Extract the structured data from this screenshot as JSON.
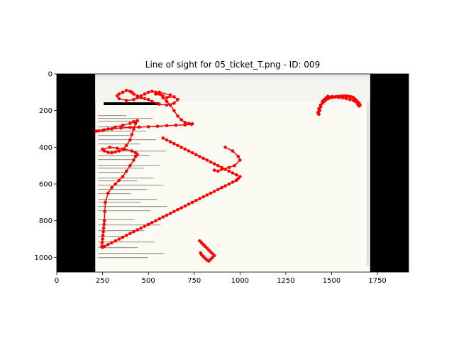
{
  "chart_data": {
    "type": "scatter",
    "title": "Line of sight for 05_ticket_T.png - ID: 009",
    "xlabel": "",
    "ylabel": "",
    "xlim": [
      0,
      1920
    ],
    "ylim": [
      1080,
      0
    ],
    "x_ticks": [
      0,
      250,
      500,
      750,
      1000,
      1250,
      1500,
      1750
    ],
    "y_ticks": [
      0,
      200,
      400,
      600,
      800,
      1000
    ],
    "grid": false,
    "image_extent": {
      "x": [
        0,
        1920
      ],
      "y": [
        0,
        1080
      ]
    },
    "screenshot_extent": {
      "x": [
        210,
        1710
      ],
      "y": [
        0,
        1080
      ]
    },
    "series": [
      {
        "color": "#ff0000",
        "x": [
          540,
          580,
          560,
          620,
          600,
          640,
          660,
          640,
          600,
          560,
          520,
          500,
          480,
          460,
          440,
          420,
          410,
          400,
          380,
          360,
          340,
          330,
          340,
          380,
          420,
          440,
          460,
          480,
          500,
          520,
          540,
          560,
          580,
          600,
          620,
          640,
          660,
          680,
          700,
          720,
          740,
          735,
          700,
          650,
          600,
          550,
          500,
          450,
          400,
          350,
          300,
          260,
          230,
          215,
          250,
          280,
          320,
          360,
          400,
          420,
          440,
          430,
          420,
          410,
          400,
          380,
          360,
          340,
          320,
          300,
          280,
          260,
          250,
          290,
          330,
          370,
          410,
          430,
          440,
          430,
          420,
          400,
          380,
          360,
          340,
          320,
          300,
          280,
          265,
          262,
          260,
          258,
          256,
          254,
          252,
          250,
          248,
          246,
          250,
          260,
          280,
          300,
          320,
          340,
          360,
          380,
          400,
          420,
          440,
          460,
          480,
          500,
          520,
          540,
          560,
          580,
          600,
          620,
          640,
          660,
          680,
          700,
          720,
          740,
          760,
          780,
          800,
          820,
          840,
          860,
          880,
          900,
          920,
          940,
          960,
          980,
          990,
          1000,
          980,
          960,
          940,
          920,
          900,
          880,
          860,
          840,
          820,
          800,
          780,
          760,
          740,
          720,
          700,
          680,
          660,
          640,
          620,
          600,
          580
        ],
        "y": [
          110,
          120,
          100,
          115,
          130,
          125,
          140,
          160,
          170,
          165,
          150,
          140,
          135,
          130,
          120,
          110,
          100,
          95,
          90,
          100,
          110,
          120,
          135,
          145,
          140,
          130,
          120,
          110,
          100,
          95,
          100,
          110,
          130,
          150,
          170,
          200,
          230,
          250,
          265,
          270,
          272,
          275,
          278,
          280,
          282,
          285,
          288,
          290,
          292,
          295,
          300,
          305,
          310,
          312,
          308,
          300,
          290,
          280,
          270,
          260,
          255,
          270,
          300,
          330,
          360,
          390,
          410,
          420,
          425,
          430,
          428,
          420,
          410,
          400,
          405,
          410,
          420,
          430,
          440,
          450,
          470,
          500,
          530,
          560,
          580,
          600,
          620,
          650,
          700,
          750,
          800,
          820,
          840,
          860,
          880,
          900,
          920,
          940,
          945,
          940,
          930,
          920,
          910,
          900,
          890,
          880,
          870,
          860,
          850,
          840,
          830,
          820,
          810,
          800,
          790,
          780,
          770,
          760,
          750,
          740,
          730,
          720,
          710,
          700,
          690,
          680,
          670,
          660,
          650,
          640,
          630,
          620,
          610,
          600,
          590,
          580,
          570,
          560,
          550,
          540,
          530,
          520,
          510,
          500,
          490,
          480,
          470,
          460,
          450,
          440,
          430,
          420,
          410,
          400,
          390,
          380,
          370,
          360,
          350
        ]
      },
      {
        "color": "#ff0000",
        "x": [
          1430,
          1435,
          1440,
          1450,
          1460,
          1470,
          1480,
          1490,
          1500,
          1510,
          1520,
          1530,
          1540,
          1550,
          1560,
          1570,
          1580,
          1590,
          1600,
          1610,
          1620,
          1630,
          1640,
          1650,
          1655,
          1650,
          1645,
          1640,
          1630,
          1620,
          1600,
          1580,
          1560,
          1540,
          1520,
          1500,
          1480,
          1470,
          1460,
          1450,
          1440,
          1430,
          1425
        ],
        "y": [
          220,
          200,
          180,
          160,
          150,
          140,
          135,
          130,
          128,
          126,
          125,
          124,
          123,
          122,
          121,
          120,
          121,
          122,
          124,
          126,
          130,
          140,
          150,
          160,
          170,
          175,
          170,
          160,
          150,
          145,
          140,
          135,
          130,
          128,
          126,
          124,
          122,
          130,
          140,
          150,
          170,
          190,
          210
        ]
      },
      {
        "color": "#ff0000",
        "x": [
          780,
          790,
          800,
          810,
          820,
          830,
          840,
          850,
          860,
          850,
          840,
          830,
          820,
          810,
          800,
          790,
          785
        ],
        "y": [
          910,
          920,
          930,
          940,
          950,
          960,
          970,
          980,
          990,
          1000,
          1010,
          1020,
          1015,
          1005,
          995,
          985,
          975
        ]
      }
    ],
    "extra_points": [
      {
        "x": 920,
        "y": 400
      },
      {
        "x": 960,
        "y": 420
      },
      {
        "x": 990,
        "y": 450
      },
      {
        "x": 1000,
        "y": 470
      },
      {
        "x": 970,
        "y": 500
      },
      {
        "x": 940,
        "y": 510
      },
      {
        "x": 900,
        "y": 520
      },
      {
        "x": 880,
        "y": 530
      },
      {
        "x": 860,
        "y": 525
      }
    ]
  }
}
